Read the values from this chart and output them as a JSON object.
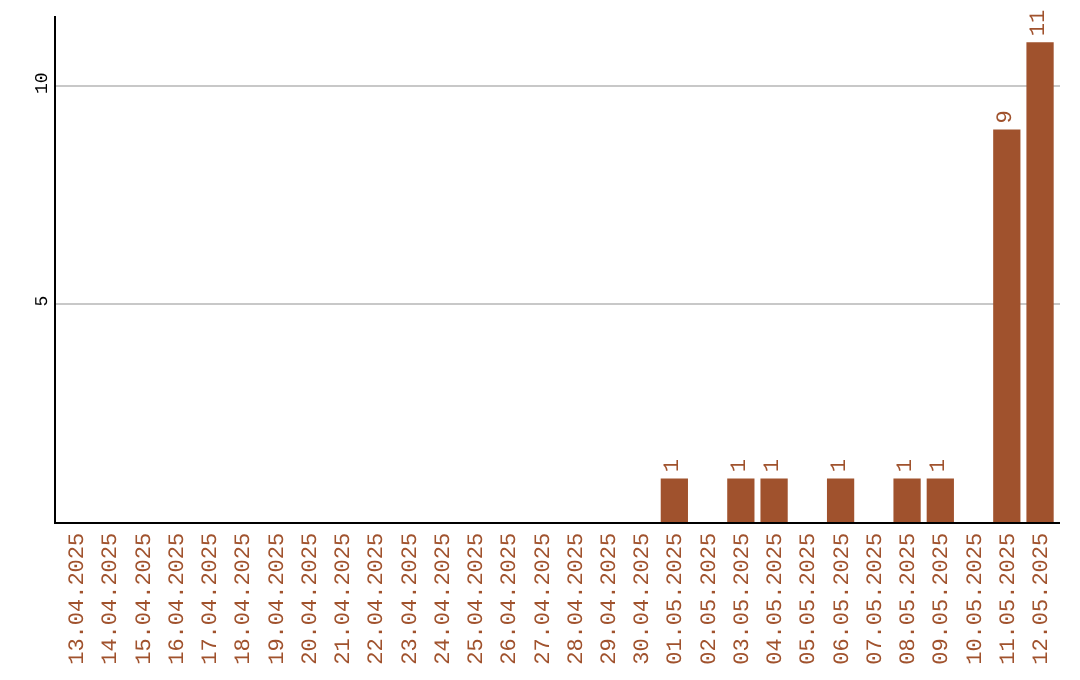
{
  "chart_data": {
    "type": "bar",
    "categories": [
      "13.04.2025",
      "14.04.2025",
      "15.04.2025",
      "16.04.2025",
      "17.04.2025",
      "18.04.2025",
      "19.04.2025",
      "20.04.2025",
      "21.04.2025",
      "22.04.2025",
      "23.04.2025",
      "24.04.2025",
      "25.04.2025",
      "26.04.2025",
      "27.04.2025",
      "28.04.2025",
      "29.04.2025",
      "30.04.2025",
      "01.05.2025",
      "02.05.2025",
      "03.05.2025",
      "04.05.2025",
      "05.05.2025",
      "06.05.2025",
      "07.05.2025",
      "08.05.2025",
      "09.05.2025",
      "10.05.2025",
      "11.05.2025",
      "12.05.2025"
    ],
    "values": [
      0,
      0,
      0,
      0,
      0,
      0,
      0,
      0,
      0,
      0,
      0,
      0,
      0,
      0,
      0,
      0,
      0,
      0,
      1,
      0,
      1,
      1,
      0,
      1,
      0,
      1,
      1,
      0,
      9,
      11
    ],
    "value_labels": [
      null,
      null,
      null,
      null,
      null,
      null,
      null,
      null,
      null,
      null,
      null,
      null,
      null,
      null,
      null,
      null,
      null,
      null,
      "1",
      null,
      "1",
      "1",
      null,
      "1",
      null,
      "1",
      "1",
      null,
      "9",
      "11"
    ],
    "color": "#a0522d",
    "ylim": [
      0,
      11.6
    ],
    "yticks": [
      5,
      10
    ],
    "grid": "y"
  }
}
